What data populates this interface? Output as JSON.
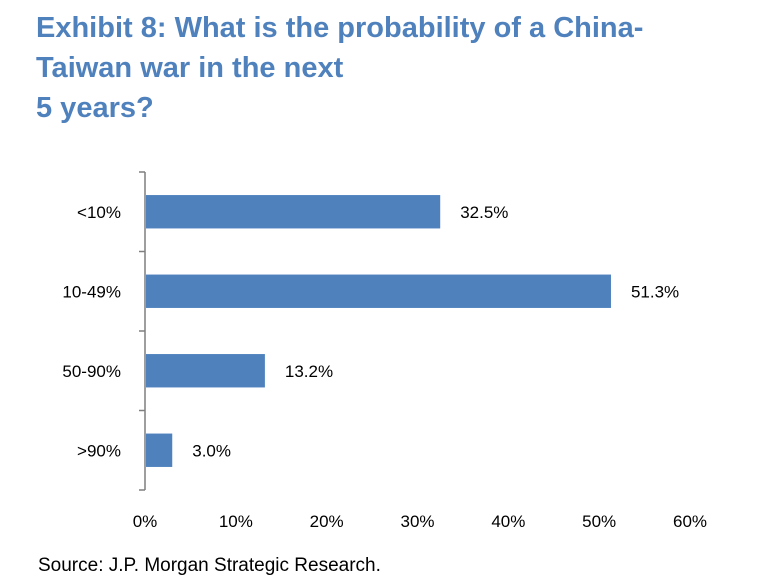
{
  "title_lines": [
    "Exhibit 8: What is the probability of a China-",
    "Taiwan war in the next",
    "5 years?"
  ],
  "source": "Source: J.P. Morgan Strategic Research.",
  "colors": {
    "title": "#4f81bd",
    "bar": "#4f81bd",
    "axis": "#7f7f7f"
  },
  "chart_data": {
    "type": "bar",
    "orientation": "horizontal",
    "title": "What is the probability of a China-Taiwan war in the next 5 years?",
    "categories": [
      "<10%",
      "10-49%",
      "50-90%",
      ">90%"
    ],
    "values": [
      32.5,
      51.3,
      13.2,
      3.0
    ],
    "data_labels": [
      "32.5%",
      "51.3%",
      "13.2%",
      "3.0%"
    ],
    "xlim": [
      0,
      60
    ],
    "x_ticks": [
      "0%",
      "10%",
      "20%",
      "30%",
      "40%",
      "50%",
      "60%"
    ],
    "xlabel": "",
    "ylabel": "",
    "grid": false,
    "legend": "none"
  }
}
